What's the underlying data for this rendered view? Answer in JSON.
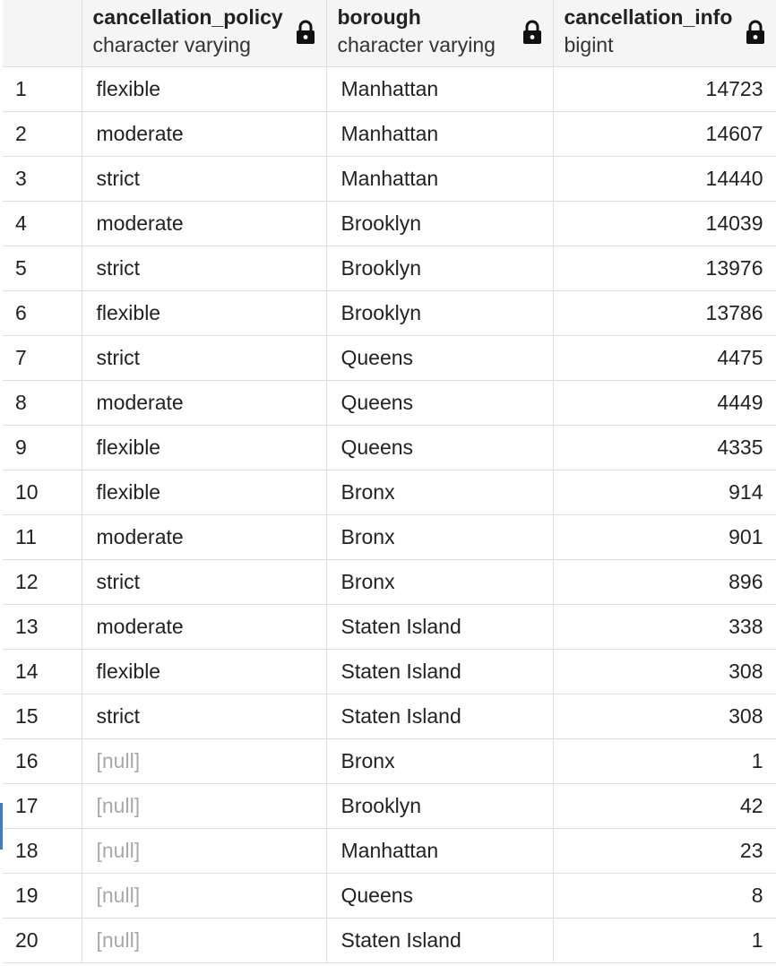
{
  "columns": [
    {
      "name": "cancellation_policy",
      "type": "character varying",
      "icon": "lock-icon"
    },
    {
      "name": "borough",
      "type": "character varying",
      "icon": "lock-icon"
    },
    {
      "name": "cancellation_info",
      "type": "bigint",
      "icon": "lock-icon"
    }
  ],
  "null_label": "[null]",
  "rows": [
    {
      "index": "1",
      "cancellation_policy": "flexible",
      "borough": "Manhattan",
      "cancellation_info": "14723"
    },
    {
      "index": "2",
      "cancellation_policy": "moderate",
      "borough": "Manhattan",
      "cancellation_info": "14607"
    },
    {
      "index": "3",
      "cancellation_policy": "strict",
      "borough": "Manhattan",
      "cancellation_info": "14440"
    },
    {
      "index": "4",
      "cancellation_policy": "moderate",
      "borough": "Brooklyn",
      "cancellation_info": "14039"
    },
    {
      "index": "5",
      "cancellation_policy": "strict",
      "borough": "Brooklyn",
      "cancellation_info": "13976"
    },
    {
      "index": "6",
      "cancellation_policy": "flexible",
      "borough": "Brooklyn",
      "cancellation_info": "13786"
    },
    {
      "index": "7",
      "cancellation_policy": "strict",
      "borough": "Queens",
      "cancellation_info": "4475"
    },
    {
      "index": "8",
      "cancellation_policy": "moderate",
      "borough": "Queens",
      "cancellation_info": "4449"
    },
    {
      "index": "9",
      "cancellation_policy": "flexible",
      "borough": "Queens",
      "cancellation_info": "4335"
    },
    {
      "index": "10",
      "cancellation_policy": "flexible",
      "borough": "Bronx",
      "cancellation_info": "914"
    },
    {
      "index": "11",
      "cancellation_policy": "moderate",
      "borough": "Bronx",
      "cancellation_info": "901"
    },
    {
      "index": "12",
      "cancellation_policy": "strict",
      "borough": "Bronx",
      "cancellation_info": "896"
    },
    {
      "index": "13",
      "cancellation_policy": "moderate",
      "borough": "Staten Island",
      "cancellation_info": "338"
    },
    {
      "index": "14",
      "cancellation_policy": "flexible",
      "borough": "Staten Island",
      "cancellation_info": "308"
    },
    {
      "index": "15",
      "cancellation_policy": "strict",
      "borough": "Staten Island",
      "cancellation_info": "308"
    },
    {
      "index": "16",
      "cancellation_policy": null,
      "borough": "Bronx",
      "cancellation_info": "1"
    },
    {
      "index": "17",
      "cancellation_policy": null,
      "borough": "Brooklyn",
      "cancellation_info": "42"
    },
    {
      "index": "18",
      "cancellation_policy": null,
      "borough": "Manhattan",
      "cancellation_info": "23"
    },
    {
      "index": "19",
      "cancellation_policy": null,
      "borough": "Queens",
      "cancellation_info": "8"
    },
    {
      "index": "20",
      "cancellation_policy": null,
      "borough": "Staten Island",
      "cancellation_info": "1"
    }
  ],
  "colors": {
    "header_bg": "#f5f5f5",
    "border": "#dedede",
    "null_text": "#a8a8a8",
    "text": "#222222",
    "row_marker": "#4a78b8"
  }
}
